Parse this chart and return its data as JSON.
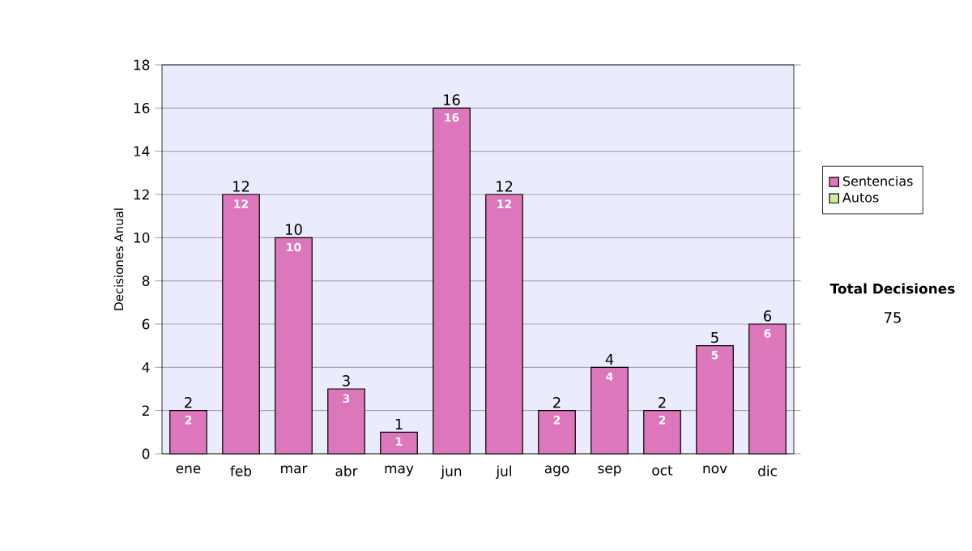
{
  "chart_data": {
    "type": "bar",
    "stacked": true,
    "ylabel": "Decisiones Anual",
    "categories": [
      "ene",
      "feb",
      "mar",
      "abr",
      "may",
      "jun",
      "jul",
      "ago",
      "sep",
      "oct",
      "nov",
      "dic"
    ],
    "series": [
      {
        "name": "Sentencias",
        "color": "#dd77bb",
        "values": [
          2,
          12,
          10,
          3,
          1,
          16,
          12,
          2,
          4,
          2,
          5,
          6
        ],
        "value_labels": [
          "2",
          "12",
          "10",
          "3",
          "1",
          "16",
          "12",
          "2",
          "4",
          "2",
          "5",
          "6"
        ]
      },
      {
        "name": "Autos",
        "color": "#ccee99",
        "values": [
          0,
          0,
          0,
          0,
          0,
          0,
          0,
          0,
          0,
          0,
          0,
          0
        ]
      }
    ],
    "totals": [
      "2",
      "12",
      "10",
      "3",
      "1",
      "16",
      "12",
      "2",
      "4",
      "2",
      "5",
      "6"
    ],
    "ylim": [
      0,
      18
    ],
    "yticks": [
      0,
      2,
      4,
      6,
      8,
      10,
      12,
      14,
      16,
      18
    ],
    "grid": "y",
    "legend": "right",
    "annotations": [
      "Total Decisiones",
      "75"
    ]
  }
}
